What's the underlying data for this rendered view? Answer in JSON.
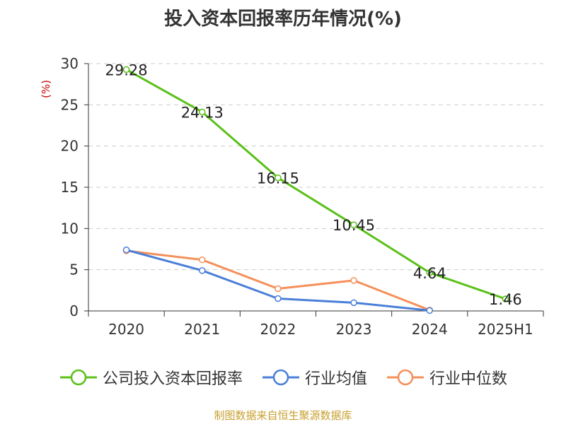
{
  "chart_data": {
    "type": "line",
    "title": "投入资本回报率历年情况(%)",
    "ylabel": "(%)",
    "xlabel": "",
    "categories": [
      "2020",
      "2021",
      "2022",
      "2023",
      "2024",
      "2025H1"
    ],
    "ylim": [
      0,
      30
    ],
    "yticks": [
      0,
      5,
      10,
      15,
      20,
      25,
      30
    ],
    "grid": true,
    "legend_position": "bottom",
    "series": [
      {
        "name": "公司投入资本回报率",
        "color": "#5ac018",
        "values": [
          29.28,
          24.13,
          16.15,
          10.45,
          4.64,
          1.46
        ],
        "labels": [
          "29.28",
          "24.13",
          "16.15",
          "10.45",
          "4.64",
          "1.46"
        ]
      },
      {
        "name": "行业均值",
        "color": "#4a7fd8",
        "values": [
          7.4,
          4.9,
          1.5,
          1.0,
          0.05,
          null
        ]
      },
      {
        "name": "行业中位数",
        "color": "#f5905a",
        "values": [
          7.3,
          6.2,
          2.7,
          3.7,
          0.1,
          null
        ]
      }
    ]
  },
  "source_text": "制图数据来自恒生聚源数据库"
}
